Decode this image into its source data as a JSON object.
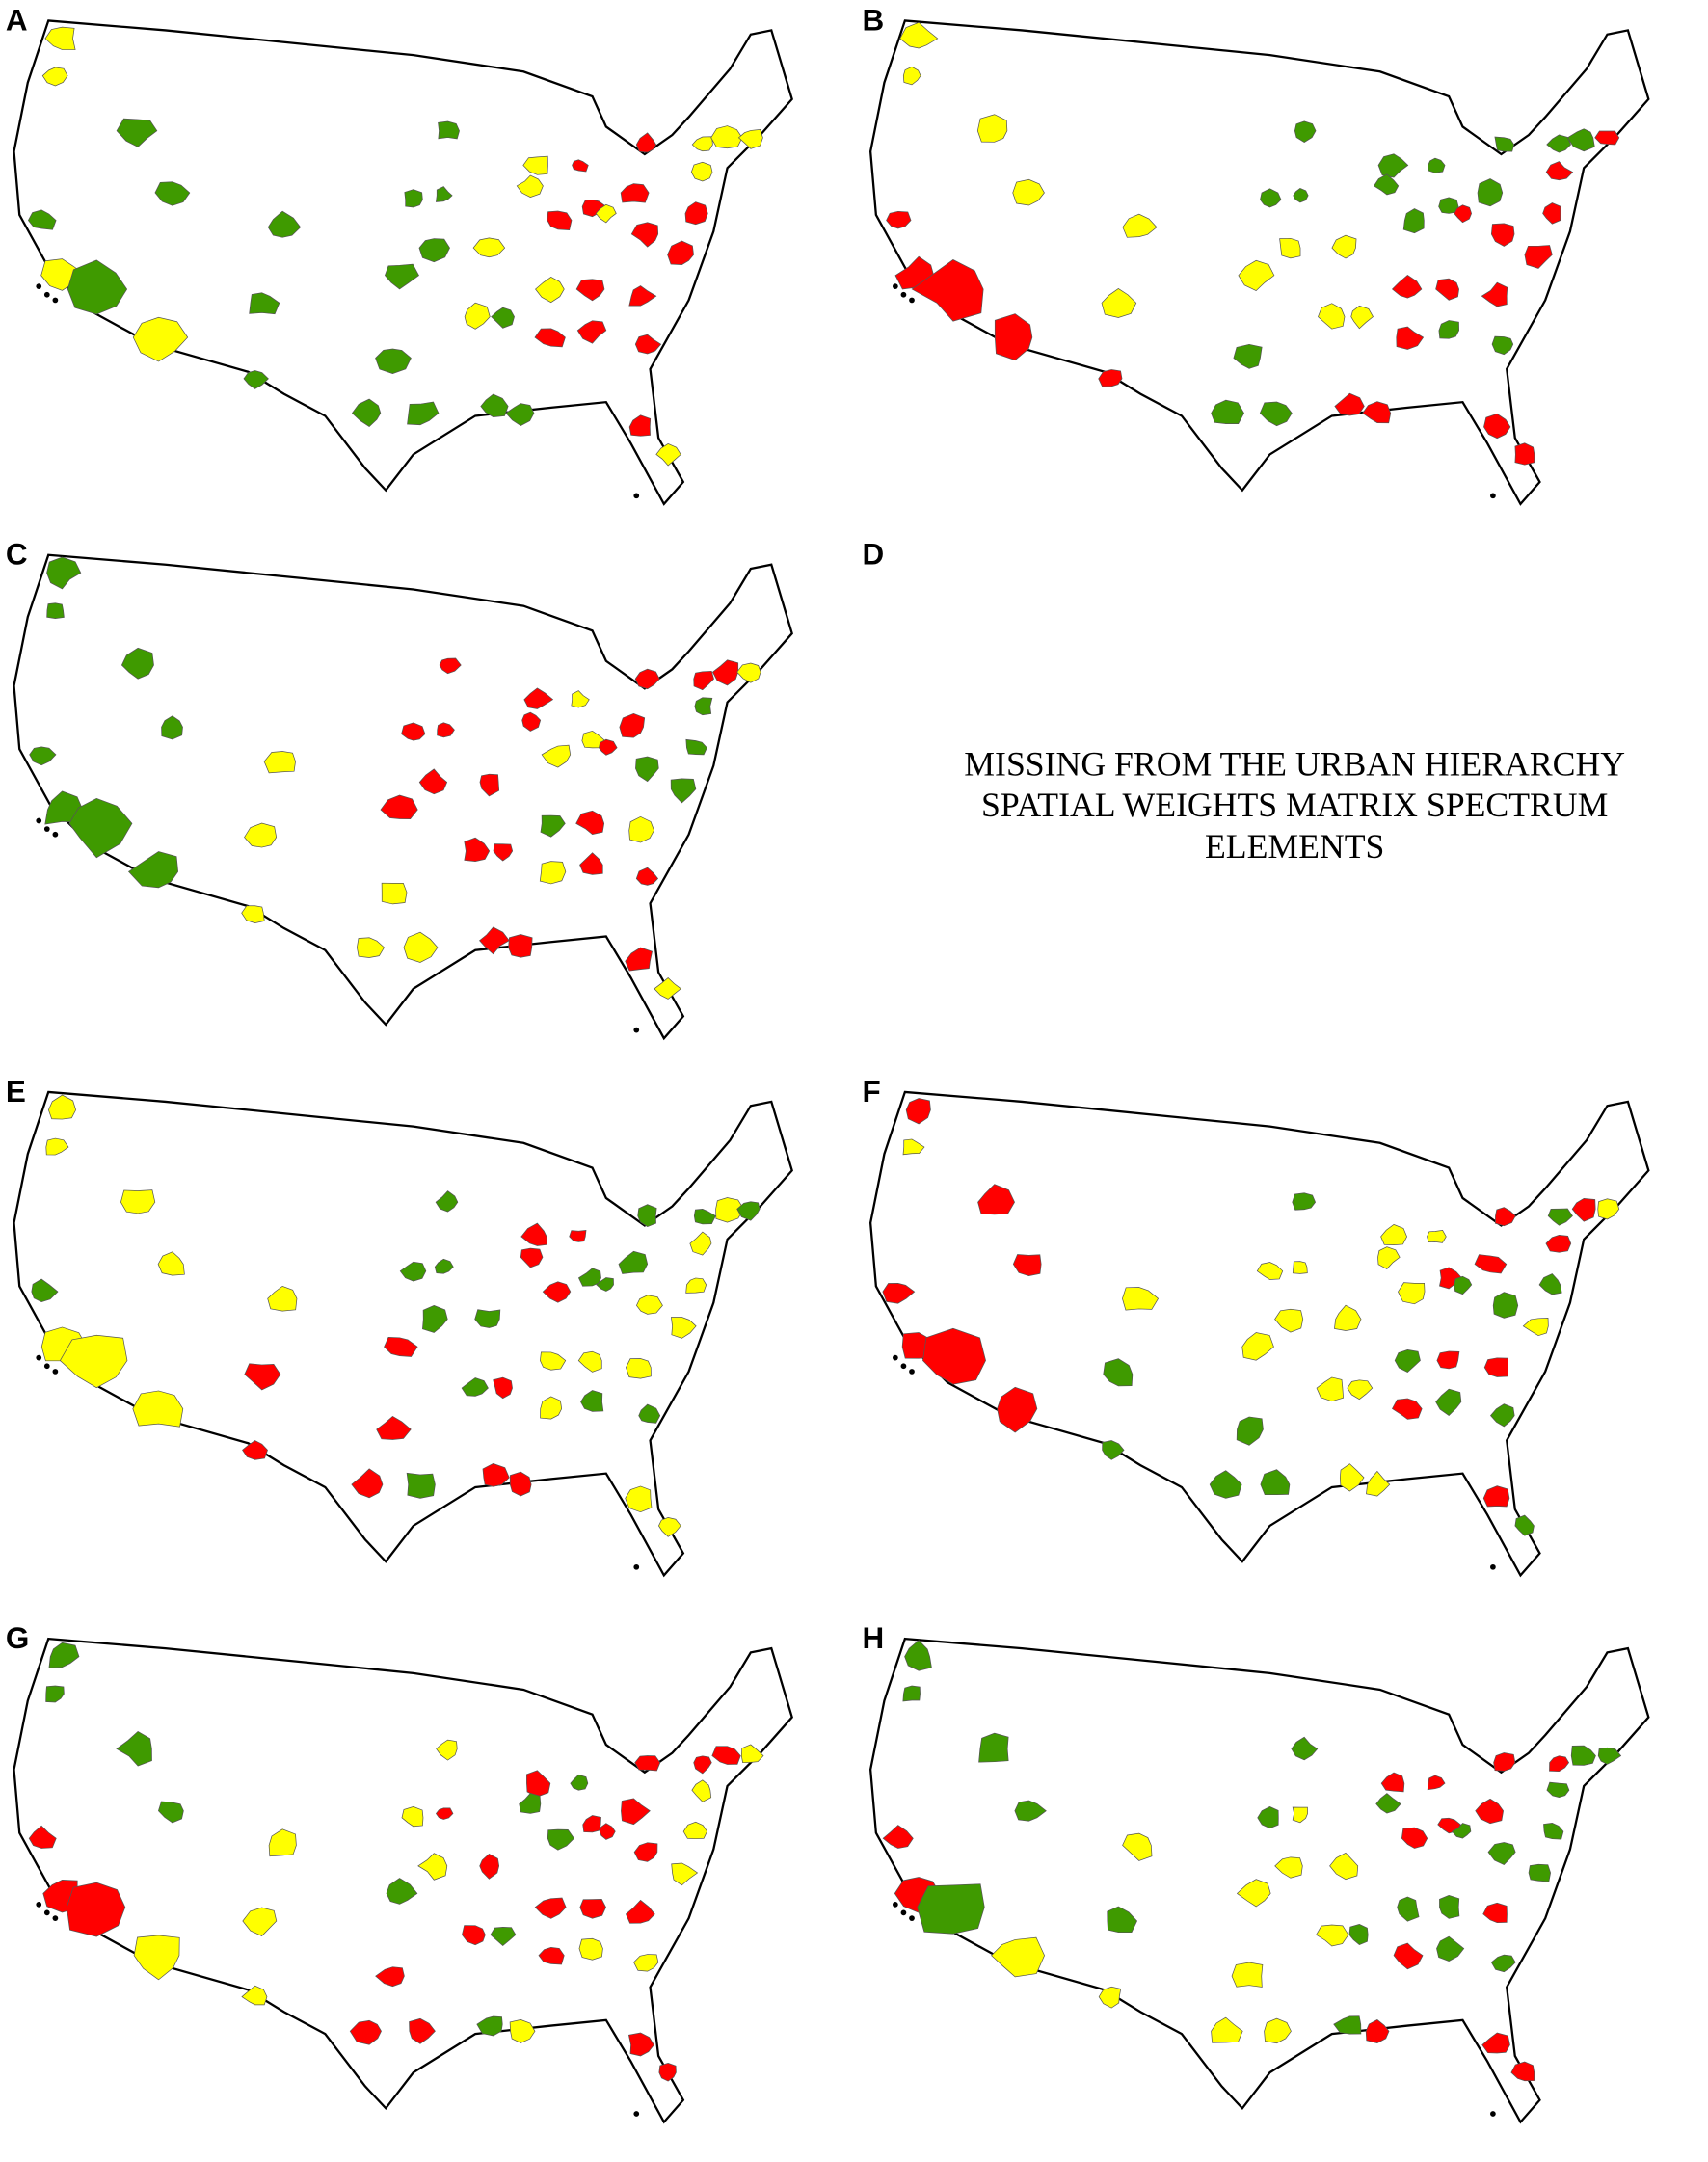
{
  "panels": [
    {
      "label": "A"
    },
    {
      "label": "B"
    },
    {
      "label": "C"
    },
    {
      "label": "D",
      "note": [
        "MISSING FROM THE URBAN HIERARCHY",
        "SPATIAL WEIGHTS MATRIX SPECTRUM",
        "ELEMENTS"
      ]
    },
    {
      "label": "E"
    },
    {
      "label": "F"
    },
    {
      "label": "G"
    },
    {
      "label": "H"
    }
  ]
}
